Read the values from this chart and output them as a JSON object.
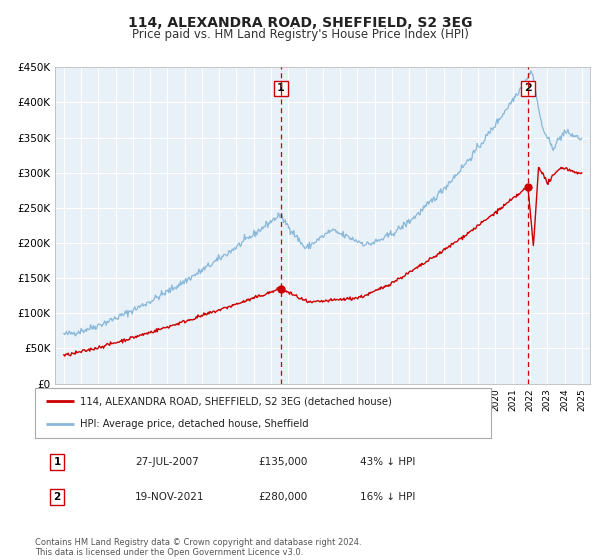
{
  "title": "114, ALEXANDRA ROAD, SHEFFIELD, S2 3EG",
  "subtitle": "Price paid vs. HM Land Registry's House Price Index (HPI)",
  "title_fontsize": 10,
  "subtitle_fontsize": 8.5,
  "background_color": "#ffffff",
  "plot_bg_color": "#e8f0f8",
  "grid_color": "#ffffff",
  "red_color": "#cc0000",
  "blue_color": "#89b8d8",
  "marker_color": "#cc0000",
  "vline_color": "#cc0000",
  "ylabel_ticks": [
    "£0",
    "£50K",
    "£100K",
    "£150K",
    "£200K",
    "£250K",
    "£300K",
    "£350K",
    "£400K",
    "£450K"
  ],
  "ytick_values": [
    0,
    50000,
    100000,
    150000,
    200000,
    250000,
    300000,
    350000,
    400000,
    450000
  ],
  "xmin": 1994.5,
  "xmax": 2025.5,
  "ymin": 0,
  "ymax": 450000,
  "transaction1_date": 2007.57,
  "transaction1_price": 135000,
  "transaction1_label": "1",
  "transaction2_date": 2021.88,
  "transaction2_price": 280000,
  "transaction2_label": "2",
  "legend_line1": "114, ALEXANDRA ROAD, SHEFFIELD, S2 3EG (detached house)",
  "legend_line2": "HPI: Average price, detached house, Sheffield",
  "table_row1_num": "1",
  "table_row1_date": "27-JUL-2007",
  "table_row1_price": "£135,000",
  "table_row1_hpi": "43% ↓ HPI",
  "table_row2_num": "2",
  "table_row2_date": "19-NOV-2021",
  "table_row2_price": "£280,000",
  "table_row2_hpi": "16% ↓ HPI",
  "footer": "Contains HM Land Registry data © Crown copyright and database right 2024.\nThis data is licensed under the Open Government Licence v3.0."
}
